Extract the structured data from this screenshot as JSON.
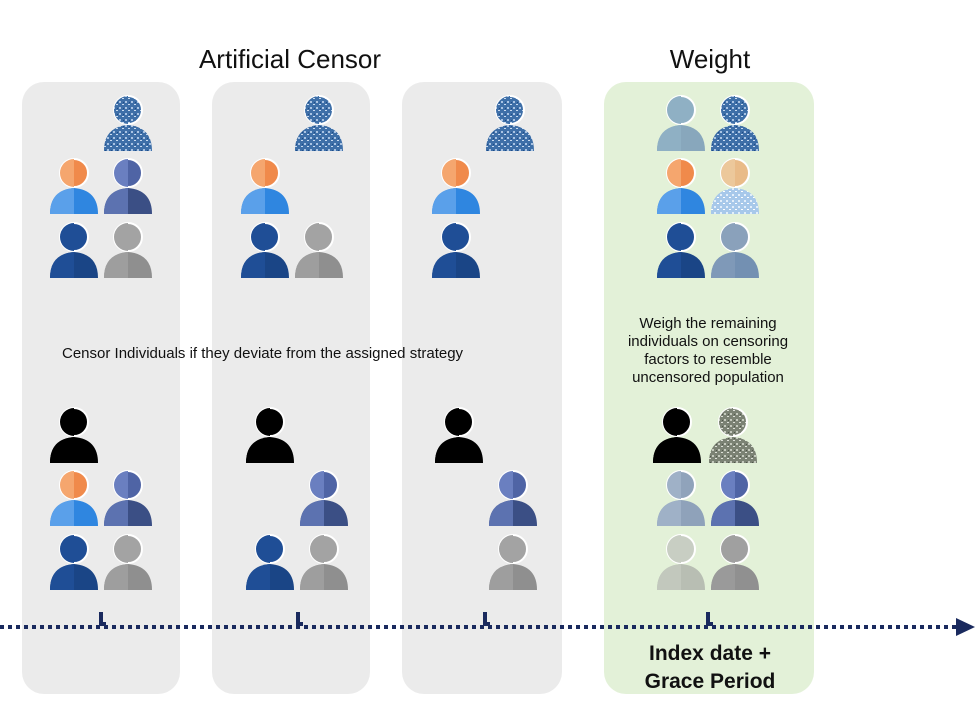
{
  "headings": {
    "artificial_censor": "Artificial Censor",
    "weight": "Weight"
  },
  "notes": {
    "censor": "Censor Individuals if they deviate from the assigned strategy",
    "weigh": "Weigh the remaining individuals on censoring factors to resemble uncensored population"
  },
  "timeline_label": "Index date + Grace Period",
  "colors": {
    "panel_gray": "#ebebeb",
    "panel_green": "#e3f1d8",
    "timeline_navy": "#1a2a5e",
    "speckled_blue": "#3e6fa8",
    "orange": "#f5a66e",
    "light_blue": "#5aa0ea",
    "slate_blue": "#5c72b0",
    "dark_navy": "#1f4e96",
    "gray": "#9e9e9e",
    "black": "#000000"
  },
  "icon_types": [
    "speckled-blue-person-icon",
    "orange-lightblue-person-icon",
    "slate-blue-person-icon",
    "navy-person-icon",
    "gray-person-icon",
    "black-person-icon",
    "speckled-gray-person-icon"
  ]
}
